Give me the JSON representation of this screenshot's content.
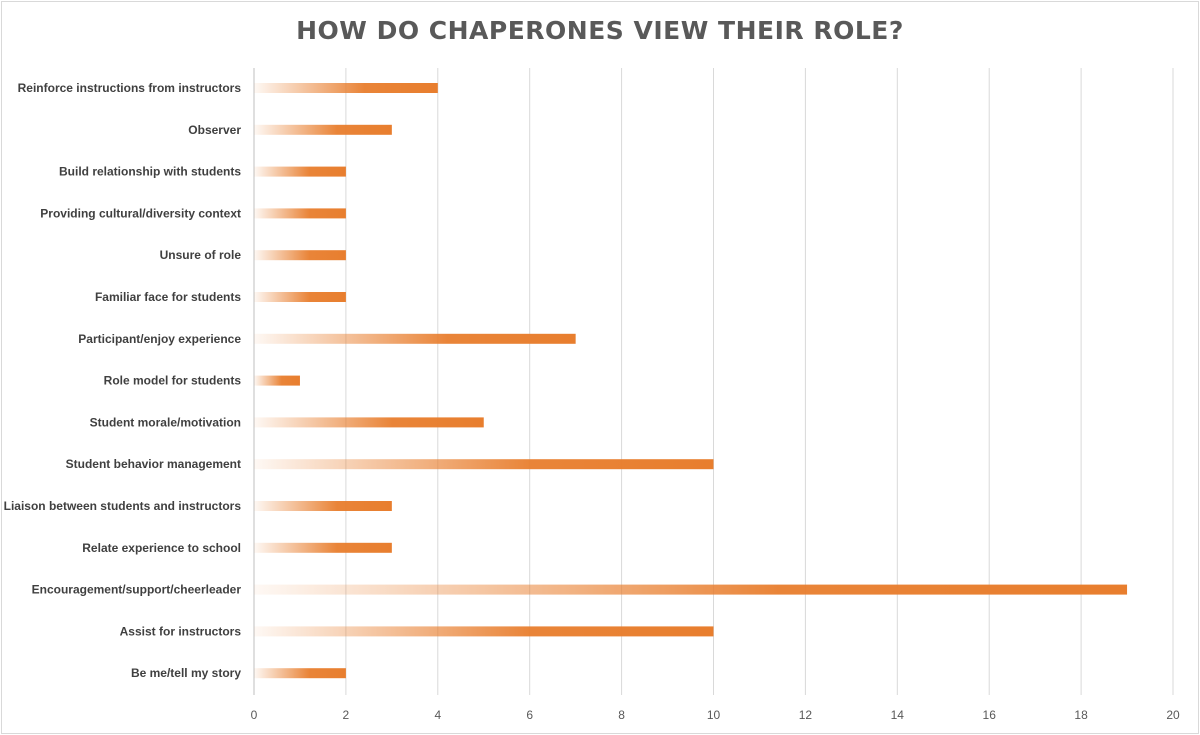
{
  "chart_data": {
    "type": "bar",
    "orientation": "horizontal",
    "title": "HOW DO CHAPERONES VIEW THEIR ROLE?",
    "xlabel": "",
    "ylabel": "",
    "xlim": [
      0,
      20
    ],
    "xticks": [
      0,
      2,
      4,
      6,
      8,
      10,
      12,
      14,
      16,
      18,
      20
    ],
    "grid": "vertical",
    "bar_color": "#E87E2E",
    "categories": [
      "Reinforce instructions from instructors",
      "Observer",
      "Build relationship with students",
      "Providing cultural/diversity context",
      "Unsure of role",
      "Familiar face for students",
      "Participant/enjoy experience",
      "Role model for students",
      "Student morale/motivation",
      "Student behavior management",
      "Liaison between students and instructors",
      "Relate experience to school",
      "Encouragement/support/cheerleader",
      "Assist for instructors",
      "Be me/tell my story"
    ],
    "values": [
      4,
      3,
      2,
      2,
      2,
      2,
      7,
      1,
      5,
      10,
      3,
      3,
      19,
      10,
      2
    ]
  }
}
